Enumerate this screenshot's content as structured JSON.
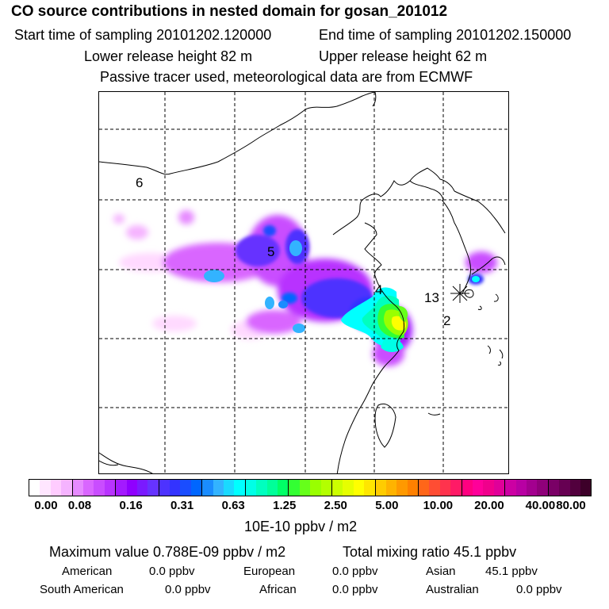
{
  "header": {
    "title": "CO  source contributions in nested domain for gosan_201012",
    "start_label": "Start time of sampling 20101202.120000",
    "end_label": "End time of sampling 20101202.150000",
    "lower_label": "Lower release height   82 m",
    "upper_label": "Upper release height   62 m",
    "tracer_label": "Passive tracer used, meteorological data are from ECMWF"
  },
  "map": {
    "region_labels": [
      "6",
      "5",
      "4",
      "13",
      "2"
    ],
    "receptor_marker": "asterisk-icon"
  },
  "colorbar": {
    "tick_labels": [
      "0.00",
      "0.08",
      "0.16",
      "0.31",
      "0.63",
      "1.25",
      "2.50",
      "5.00",
      "10.00",
      "20.00",
      "40.00",
      "80.00"
    ],
    "unit": "10E-10 ppbv / m2",
    "colors": [
      "#ffffff",
      "#ffe6ff",
      "#ffccff",
      "#f5b3ff",
      "#e68aff",
      "#d966ff",
      "#c94dff",
      "#b833ff",
      "#a31aff",
      "#8f00ff",
      "#7a1aff",
      "#6633ff",
      "#4d33ff",
      "#3333ff",
      "#1a4dff",
      "#0066ff",
      "#1a8cff",
      "#33b3ff",
      "#1ad9ff",
      "#00ffff",
      "#00ffe6",
      "#00ffbf",
      "#00ff99",
      "#00ff66",
      "#33ff33",
      "#66ff1a",
      "#99ff00",
      "#b3ff00",
      "#ccff00",
      "#e6ff00",
      "#ffff00",
      "#ffe600",
      "#ffcc00",
      "#ffb300",
      "#ff9900",
      "#ff8000",
      "#ff6619",
      "#ff4d33",
      "#ff334d",
      "#ff1a66",
      "#ff0080",
      "#ff0099",
      "#f0008c",
      "#e00099",
      "#cc00a3",
      "#b800a3",
      "#a3008f",
      "#8f007a",
      "#7a0066",
      "#660052",
      "#52003d",
      "#3d0029"
    ]
  },
  "stats": {
    "max_line": "Maximum value  0.788E-09 ppbv / m2",
    "total_line": "Total mixing ratio      45.1 ppbv"
  },
  "sources": {
    "american": "American",
    "american_val": "0.0 ppbv",
    "european": "European",
    "european_val": "0.0 ppbv",
    "asian": "Asian",
    "asian_val": "45.1 ppbv",
    "south_american": "South American",
    "south_american_val": "0.0 ppbv",
    "african": "African",
    "african_val": "0.0 ppbv",
    "australian": "Australian",
    "australian_val": "0.0 ppbv"
  }
}
